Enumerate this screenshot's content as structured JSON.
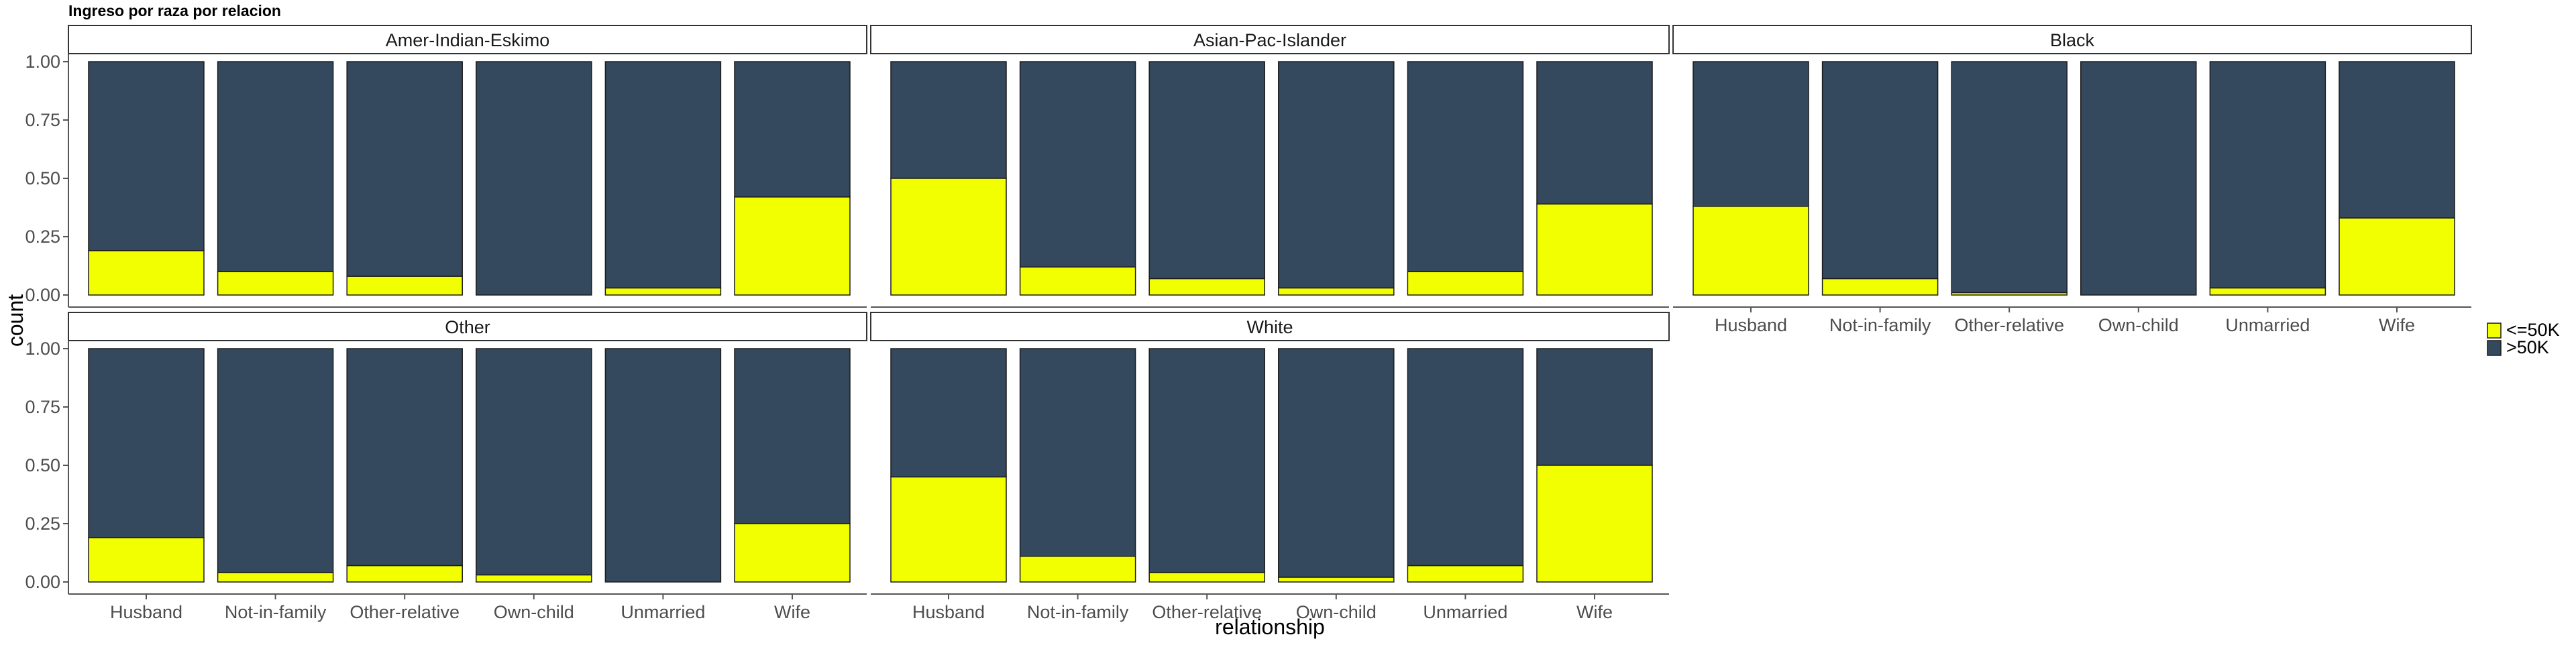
{
  "chart_data": {
    "type": "bar",
    "title": "Ingreso por raza por relacion",
    "xlabel": "relationship",
    "ylabel": "count",
    "ylim": [
      0,
      1
    ],
    "yticks": [
      "0.00",
      "0.25",
      "0.50",
      "0.75",
      "1.00"
    ],
    "categories": [
      "Husband",
      "Not-in-family",
      "Other-relative",
      "Own-child",
      "Unmarried",
      "Wife"
    ],
    "legend": {
      "position": "right",
      "entries": [
        {
          "label": "<=50K",
          "color": "#f2ff00"
        },
        {
          "label": ">50K",
          "color": "#34495e"
        }
      ]
    },
    "series": [
      {
        "name": "<=50K",
        "color": "#f2ff00"
      },
      {
        "name": ">50K",
        "color": "#34495e"
      }
    ],
    "facets": [
      {
        "label": "Amer-Indian-Eskimo",
        "low": [
          0.19,
          0.1,
          0.08,
          0.0,
          0.03,
          0.42
        ]
      },
      {
        "label": "Asian-Pac-Islander",
        "low": [
          0.5,
          0.12,
          0.07,
          0.03,
          0.1,
          0.39
        ]
      },
      {
        "label": "Black",
        "low": [
          0.38,
          0.07,
          0.01,
          0.0,
          0.03,
          0.33
        ]
      },
      {
        "label": "Other",
        "low": [
          0.19,
          0.04,
          0.07,
          0.03,
          0.0,
          0.25
        ]
      },
      {
        "label": "White",
        "low": [
          0.45,
          0.11,
          0.04,
          0.02,
          0.07,
          0.5
        ]
      }
    ]
  }
}
